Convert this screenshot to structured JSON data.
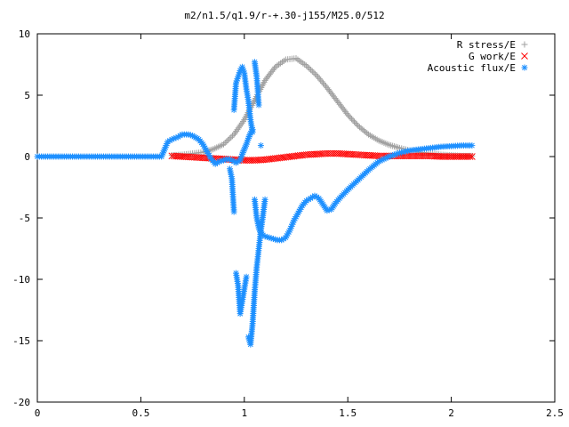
{
  "chart_data": {
    "type": "scatter",
    "title": "m2/n1.5/q1.9/r-+.30-j155/M25.0/512",
    "xlim": [
      0,
      2.5
    ],
    "ylim": [
      -20,
      10
    ],
    "xticks": [
      0,
      0.5,
      1,
      1.5,
      2,
      2.5
    ],
    "xtick_labels": [
      "0",
      "0.5",
      "1",
      "1.5",
      "2",
      "2.5"
    ],
    "yticks": [
      -20,
      -15,
      -10,
      -5,
      0,
      5,
      10
    ],
    "ytick_labels": [
      "-20",
      "-15",
      "-10",
      "-5",
      "0",
      "5",
      "10"
    ],
    "grid": false,
    "legend_position": "top-right",
    "series": [
      {
        "name": "R stress/E",
        "marker": "plus",
        "color": "#a0a0a0",
        "x": [
          0.65,
          0.7,
          0.75,
          0.8,
          0.85,
          0.9,
          0.95,
          1.0,
          1.05,
          1.1,
          1.15,
          1.2,
          1.25,
          1.3,
          1.35,
          1.4,
          1.45,
          1.5,
          1.55,
          1.6,
          1.65,
          1.7,
          1.75,
          1.8,
          1.85,
          1.9,
          1.95,
          2.0,
          2.05,
          2.1
        ],
        "y": [
          0.1,
          0.15,
          0.25,
          0.35,
          0.6,
          1.0,
          1.8,
          3.0,
          4.6,
          6.2,
          7.3,
          7.9,
          8.0,
          7.4,
          6.6,
          5.6,
          4.5,
          3.4,
          2.5,
          1.8,
          1.3,
          0.95,
          0.7,
          0.5,
          0.35,
          0.25,
          0.15,
          0.1,
          0.05,
          0.05
        ]
      },
      {
        "name": "G work/E",
        "marker": "cross",
        "color": "#ff0000",
        "x": [
          0.65,
          0.7,
          0.75,
          0.8,
          0.85,
          0.9,
          0.95,
          1.0,
          1.05,
          1.1,
          1.15,
          1.2,
          1.25,
          1.3,
          1.35,
          1.4,
          1.45,
          1.5,
          1.55,
          1.6,
          1.65,
          1.7,
          1.75,
          1.8,
          1.85,
          1.9,
          1.95,
          2.0,
          2.05,
          2.1
        ],
        "y": [
          0.05,
          0.0,
          -0.05,
          -0.1,
          -0.15,
          -0.2,
          -0.25,
          -0.3,
          -0.3,
          -0.25,
          -0.15,
          -0.05,
          0.05,
          0.15,
          0.2,
          0.25,
          0.25,
          0.2,
          0.15,
          0.1,
          0.05,
          0.05,
          0.05,
          0.05,
          0.05,
          0.05,
          0.0,
          0.0,
          0.0,
          0.0
        ]
      },
      {
        "name": "Acoustic flux/E",
        "marker": "star",
        "color": "#1e90ff",
        "x": [
          0.0,
          0.05,
          0.1,
          0.15,
          0.2,
          0.25,
          0.3,
          0.35,
          0.4,
          0.45,
          0.5,
          0.55,
          0.6,
          0.63,
          0.65,
          0.68,
          0.7,
          0.73,
          0.75,
          0.78,
          0.8,
          0.82,
          0.84,
          0.86,
          0.88,
          0.9,
          0.92,
          0.94,
          0.96,
          0.97,
          0.98,
          0.99,
          1.0,
          1.01,
          1.02,
          1.03,
          1.04,
          1.05,
          1.06,
          1.07,
          1.08,
          1.09,
          1.1,
          1.12,
          1.14,
          1.16,
          1.18,
          1.2,
          1.22,
          1.24,
          1.26,
          1.28,
          1.3,
          1.32,
          1.34,
          1.36,
          1.38,
          1.4,
          1.42,
          1.44,
          1.46,
          1.5,
          1.55,
          1.6,
          1.65,
          1.7,
          1.75,
          1.8,
          1.85,
          1.9,
          1.95,
          2.0,
          2.05,
          2.1,
          0.95,
          0.96,
          0.97,
          0.98,
          0.99,
          1.0,
          1.01,
          1.02,
          1.03,
          1.04,
          1.05,
          1.06,
          1.07,
          1.08,
          0.96,
          0.97,
          0.98,
          0.99,
          1.0,
          1.01,
          1.02,
          1.03,
          1.04,
          1.05,
          1.06,
          1.07,
          1.08,
          1.09,
          1.1,
          0.93,
          0.94,
          0.95
        ],
        "y": [
          0.0,
          0.0,
          0.0,
          0.0,
          0.0,
          0.0,
          0.0,
          0.0,
          0.0,
          0.0,
          0.0,
          0.0,
          0.0,
          1.2,
          1.4,
          1.6,
          1.8,
          1.8,
          1.7,
          1.4,
          1.0,
          0.4,
          -0.2,
          -0.6,
          -0.4,
          -0.3,
          -0.2,
          -0.3,
          -0.5,
          -0.4,
          -0.3,
          0.2,
          0.6,
          1.0,
          1.5,
          1.9,
          2.2,
          -3.5,
          -5.0,
          -5.8,
          -6.2,
          -6.4,
          -6.5,
          -6.6,
          -6.7,
          -6.8,
          -6.8,
          -6.6,
          -6.0,
          -5.2,
          -4.6,
          -4.0,
          -3.6,
          -3.4,
          -3.2,
          -3.4,
          -3.9,
          -4.4,
          -4.3,
          -3.8,
          -3.4,
          -2.7,
          -1.9,
          -1.1,
          -0.4,
          0.0,
          0.3,
          0.5,
          0.6,
          0.7,
          0.8,
          0.85,
          0.9,
          0.9,
          3.8,
          6.0,
          6.5,
          7.0,
          7.3,
          6.8,
          5.5,
          4.5,
          3.0,
          2.0,
          7.7,
          6.5,
          4.2,
          0.9,
          -9.5,
          -10.5,
          -12.8,
          -11.8,
          -10.8,
          -9.8,
          -14.7,
          -15.3,
          -13.6,
          -11.0,
          -9.0,
          -7.5,
          -6.0,
          -4.8,
          -3.5,
          -1.0,
          -1.8,
          -4.5
        ]
      }
    ]
  }
}
